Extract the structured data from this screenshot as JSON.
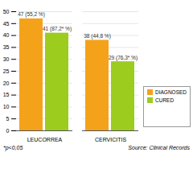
{
  "chart_data": {
    "type": "bar",
    "categories": [
      "LEUCORREA",
      "CERVICITIS"
    ],
    "series": [
      {
        "name": "DIAGNOSED",
        "color": "#f5a21b",
        "values": [
          47,
          38
        ],
        "value_labels": [
          "47 (55,2 %)",
          "38 (44,8 %)"
        ]
      },
      {
        "name": "CURED",
        "color": "#9ccc1e",
        "values": [
          41,
          29
        ],
        "value_labels": [
          "41 (87,2* %)",
          "29 (76,3* %)"
        ]
      }
    ],
    "ylim": [
      0,
      50
    ],
    "yticks": [
      0,
      5,
      10,
      15,
      20,
      25,
      30,
      35,
      40,
      45,
      50
    ],
    "grid": true,
    "legend": "right",
    "data_labels": true,
    "annotations": [
      "*p<0,05",
      "Source: Clinical Records"
    ]
  }
}
